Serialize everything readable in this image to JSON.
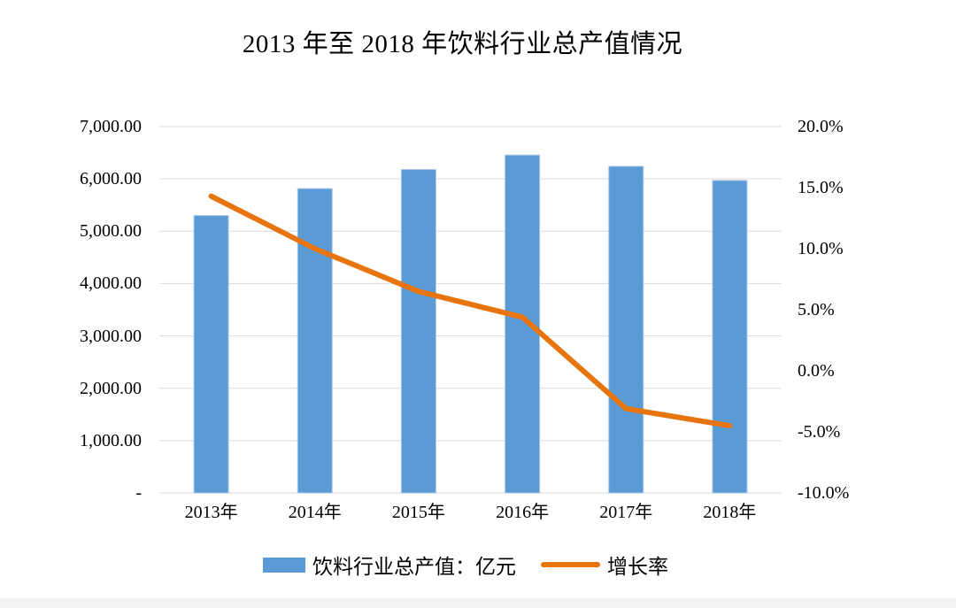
{
  "page": {
    "background": "#ffffff",
    "bottom_strip_color": "#f3f3f3"
  },
  "chart_data": {
    "type": "combo-bar-line",
    "title": "2013 年至 2018 年饮料行业总产值情况",
    "categories": [
      "2013年",
      "2014年",
      "2015年",
      "2016年",
      "2017年",
      "2018年"
    ],
    "series": [
      {
        "name": "饮料行业总产值：亿元",
        "chart_type": "bar",
        "axis": "left",
        "color": "#5B9BD5",
        "border_color": "#A9C7E8",
        "values": [
          5300,
          5815,
          6180,
          6455,
          6240,
          5970
        ]
      },
      {
        "name": "增长率",
        "chart_type": "line",
        "axis": "right",
        "color": "#E8740E",
        "values": [
          14.3,
          10.0,
          6.5,
          4.4,
          -3.1,
          -4.5
        ]
      }
    ],
    "left_axis": {
      "min": 0,
      "max": 7000,
      "ticks": [
        {
          "label": "7,000.00",
          "value": 7000
        },
        {
          "label": "6,000.00",
          "value": 6000
        },
        {
          "label": "5,000.00",
          "value": 5000
        },
        {
          "label": "4,000.00",
          "value": 4000
        },
        {
          "label": "3,000.00",
          "value": 3000
        },
        {
          "label": "2,000.00",
          "value": 2000
        },
        {
          "label": "1,000.00",
          "value": 1000
        },
        {
          "label": "-",
          "value": 0
        }
      ]
    },
    "right_axis": {
      "min": -10,
      "max": 20,
      "ticks": [
        {
          "label": "20.0%",
          "value": 20
        },
        {
          "label": "15.0%",
          "value": 15
        },
        {
          "label": "10.0%",
          "value": 10
        },
        {
          "label": "5.0%",
          "value": 5
        },
        {
          "label": "0.0%",
          "value": 0
        },
        {
          "label": "-5.0%",
          "value": -5
        },
        {
          "label": "-10.0%",
          "value": -10
        }
      ]
    },
    "gridlines": true,
    "gridline_color": "#D9D9D9",
    "legend_position": "bottom"
  }
}
